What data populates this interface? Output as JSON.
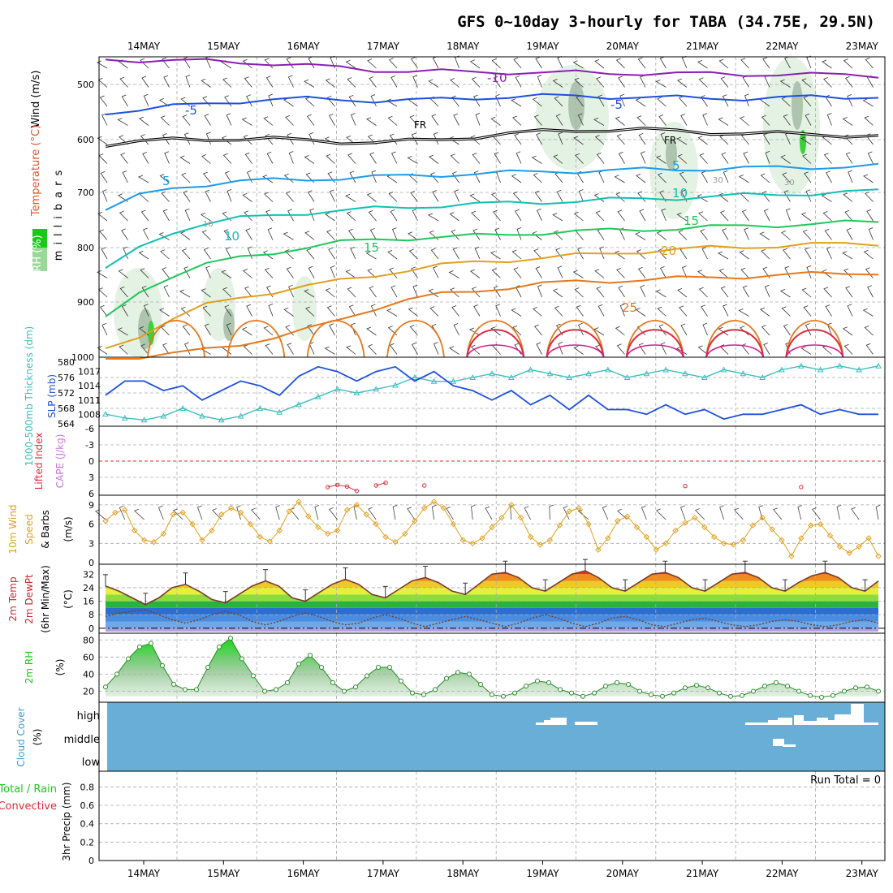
{
  "chart_data": {
    "type": "line",
    "title": "GFS 0~10day 3-hourly for TABA (34.75E, 29.5N)",
    "date_labels": [
      "14MAY",
      "15MAY",
      "16MAY",
      "17MAY",
      "18MAY",
      "19MAY",
      "20MAY",
      "21MAY",
      "22MAY",
      "23MAY"
    ],
    "colors": {
      "purple": "#8a1eb4",
      "blue": "#1e50dc",
      "sky": "#1e9be6",
      "teal": "#10c0b4",
      "green": "#1ec85a",
      "gold": "#e1a01e",
      "orange": "#e6781e",
      "red": "#dc2d3c",
      "cloud": "#69aed6",
      "cyan": "#3cbebe",
      "rh": "#19c819"
    },
    "panels": {
      "upper_air": {
        "ylabel_wind": "Wind (m/s)",
        "ylabel_temp": "Temperature (°C)",
        "ylabel_rh": "RH (%)",
        "ylabel_units": "millibars",
        "yticks": [
          "500",
          "600",
          "700",
          "800",
          "900",
          "1000"
        ],
        "ylim_mb": [
          450,
          1000
        ],
        "contour_labels": [
          "-10",
          "-5",
          "FR",
          "FR",
          "-5",
          "-5",
          "5",
          "5",
          "10",
          "10",
          "15",
          "15",
          "20",
          "25",
          "10",
          "30",
          "30"
        ],
        "isotherms": [
          {
            "name": "-10",
            "color": "purple",
            "mb": [
              455,
              456,
              457,
              458,
              460,
              462,
              466,
              470,
              474,
              476,
              477,
              478,
              478,
              479,
              479,
              480,
              480,
              481,
              481,
              482,
              482,
              483,
              483,
              484
            ]
          },
          {
            "name": "-5",
            "color": "blue",
            "mb": [
              552,
              547,
              541,
              536,
              531,
              528,
              527,
              528,
              530,
              530,
              528,
              525,
              523,
              522,
              522,
              523,
              524,
              525,
              526,
              526,
              525,
              524,
              524,
              522
            ]
          },
          {
            "name": "FR",
            "color": "black",
            "mb": [
              610,
              606,
              602,
              600,
              600,
              601,
              603,
              605,
              607,
              605,
              601,
              596,
              591,
              587,
              584,
              583,
              584,
              586,
              588,
              590,
              591,
              592,
              593,
              595
            ]
          },
          {
            "name": "5",
            "color": "sky",
            "mb": [
              730,
              705,
              690,
              683,
              678,
              676,
              674,
              672,
              670,
              668,
              666,
              664,
              662,
              660,
              659,
              658,
              657,
              656,
              655,
              654,
              653,
              652,
              651,
              650
            ]
          },
          {
            "name": "10",
            "color": "teal",
            "mb": [
              840,
              800,
              770,
              755,
              746,
              740,
              735,
              732,
              728,
              725,
              722,
              720,
              718,
              716,
              714,
              712,
              710,
              708,
              706,
              704,
              702,
              700,
              698,
              696
            ]
          },
          {
            "name": "15",
            "color": "green",
            "mb": [
              930,
              880,
              850,
              830,
              818,
              808,
              798,
              790,
              785,
              782,
              780,
              778,
              775,
              772,
              770,
              768,
              766,
              764,
              762,
              760,
              758,
              756,
              754,
              752
            ]
          },
          {
            "name": "20",
            "color": "gold",
            "mb": [
              985,
              960,
              930,
              905,
              890,
              880,
              870,
              860,
              850,
              840,
              832,
              826,
              822,
              818,
              814,
              810,
              806,
              803,
              800,
              798,
              796,
              794,
              793,
              792
            ]
          },
          {
            "name": "25",
            "color": "orange",
            "mb": [
              1000,
              1000,
              995,
              985,
              975,
              965,
              950,
              930,
              910,
              895,
              885,
              878,
              872,
              866,
              862,
              860,
              858,
              856,
              854,
              852,
              850,
              848,
              846,
              845
            ]
          }
        ]
      },
      "thickness_slp": {
        "ylabel_thick": "1000-500mb Thickness (dm)",
        "ylabel_slp": "SLP (mb)",
        "yticks_thick": [
          "564",
          "568",
          "572",
          "576",
          "580"
        ],
        "yticks_slp": [
          "1008",
          "1011",
          "1014",
          "1017"
        ],
        "ylim_thick": [
          564,
          580
        ],
        "ylim_slp": [
          1006,
          1019
        ],
        "slp_mb": [
          1012,
          1015,
          1015,
          1013,
          1014,
          1011,
          1013,
          1015,
          1014,
          1012,
          1016,
          1018,
          1017,
          1015,
          1017,
          1018,
          1015,
          1017,
          1014,
          1013,
          1011,
          1013,
          1010,
          1012,
          1009,
          1012,
          1009,
          1009,
          1008,
          1010,
          1008,
          1009,
          1007,
          1008,
          1008,
          1009,
          1010,
          1008,
          1009,
          1008,
          1008
        ],
        "thickness_dm": [
          566.5,
          565.5,
          565,
          566,
          568,
          566,
          565,
          566,
          568,
          567,
          569,
          571,
          573,
          572,
          573,
          574,
          576,
          575,
          575,
          576,
          577,
          576,
          578,
          577,
          576,
          577,
          578,
          576,
          577,
          578,
          577,
          576,
          578,
          577,
          576,
          578,
          579,
          578,
          579,
          578,
          579
        ]
      },
      "instability": {
        "ylabel_li": "Lifted Index",
        "ylabel_cape": "CAPE (J/kg)",
        "yticks": [
          "-6",
          "-3",
          "0",
          "3",
          "6"
        ],
        "ylim_li": [
          -6,
          6
        ],
        "li_values": [
          null,
          null,
          null,
          null,
          null,
          null,
          null,
          null,
          null,
          null,
          null,
          null,
          null,
          null,
          null,
          null,
          null,
          null,
          null,
          null,
          null,
          null,
          null,
          4.8,
          4.4,
          4.7,
          5.5,
          null,
          4.5,
          4,
          null,
          null,
          null,
          4.5,
          null,
          null,
          null,
          null,
          null,
          null,
          null,
          null,
          null,
          null,
          null,
          null,
          null,
          null,
          null,
          null,
          null,
          null,
          null,
          null,
          null,
          null,
          null,
          null,
          null,
          null,
          4.6,
          null,
          null,
          null,
          null,
          null,
          null,
          null,
          null,
          null,
          null,
          null,
          4.8,
          null,
          null,
          null,
          null,
          null,
          null,
          null,
          null
        ]
      },
      "wind10m": {
        "ylabel1": "10m Wind",
        "ylabel2": "Speed",
        "ylabel3": "& Barbs",
        "ylabel_units": "(m/s)",
        "yticks": [
          "0",
          "3",
          "6",
          "9"
        ],
        "ylim": [
          0,
          10
        ],
        "speed": [
          6.5,
          7.8,
          8.2,
          5,
          3.5,
          3.2,
          4.5,
          7.5,
          7.8,
          6,
          3.5,
          5,
          7.5,
          8.5,
          7.8,
          6,
          4,
          3.3,
          5,
          8,
          9.5,
          7.2,
          5.5,
          4.5,
          5,
          8.2,
          9,
          7.5,
          6,
          4,
          3.2,
          4.5,
          6.5,
          8.5,
          9.5,
          8.5,
          6,
          3.5,
          3,
          3.8,
          5.5,
          7,
          9,
          7,
          4,
          2.8,
          3.5,
          5.8,
          8,
          8.5,
          6,
          2,
          3.8,
          6.5,
          7.2,
          5.5,
          4,
          2,
          3,
          5,
          6.2,
          7,
          5.5,
          4,
          3,
          2.8,
          3.5,
          5.8,
          7,
          5.2,
          3.5,
          1,
          3.8,
          5.8,
          6,
          4.2,
          2.5,
          1.5,
          2.5,
          3.8,
          1
        ]
      },
      "temp2m": {
        "ylabel1": "2m Temp",
        "ylabel2": "2m DewPt",
        "ylabel3": "(6hr Min/Max)",
        "ylabel_units": "(°C)",
        "yticks": [
          "0",
          "8",
          "16",
          "24",
          "32"
        ],
        "ylim": [
          -2,
          36
        ],
        "temp": [
          25,
          22,
          18,
          14,
          18,
          24,
          26,
          22,
          17,
          15,
          20,
          25,
          28,
          25,
          18,
          16,
          21,
          26,
          29,
          26,
          20,
          18,
          23,
          28,
          30,
          27,
          22,
          20,
          26,
          32,
          33,
          30,
          24,
          22,
          27,
          32,
          34,
          30,
          24,
          22,
          27,
          32,
          33,
          30,
          24,
          22,
          27,
          32,
          33,
          30,
          24,
          22,
          27,
          31,
          33,
          30,
          24,
          22,
          28
        ],
        "dewpt": [
          7,
          9,
          10,
          11,
          8,
          5,
          3,
          5,
          8,
          10,
          8,
          4,
          2,
          4,
          7,
          9,
          7,
          4,
          2,
          3,
          6,
          8,
          6,
          3,
          1,
          3,
          5,
          7,
          5,
          3,
          1,
          3,
          6,
          8,
          6,
          3,
          1,
          3,
          6,
          7,
          5,
          2,
          1,
          3,
          5,
          6,
          4,
          2,
          1,
          2,
          4,
          5,
          4,
          2,
          1,
          2,
          4,
          5,
          3
        ]
      },
      "rh2m": {
        "ylabel1": "2m RH",
        "ylabel_units": "(%)",
        "yticks": [
          "20",
          "40",
          "60",
          "80"
        ],
        "ylim": [
          10,
          85
        ],
        "rh": [
          25,
          40,
          58,
          72,
          76,
          50,
          28,
          22,
          22,
          48,
          72,
          82,
          58,
          38,
          20,
          22,
          30,
          52,
          62,
          48,
          30,
          20,
          25,
          38,
          48,
          48,
          32,
          18,
          16,
          22,
          35,
          42,
          40,
          28,
          16,
          14,
          18,
          26,
          32,
          30,
          22,
          18,
          14,
          18,
          26,
          30,
          28,
          20,
          16,
          14,
          18,
          24,
          27,
          24,
          18,
          14,
          15,
          20,
          26,
          30,
          26,
          20,
          15,
          13,
          15,
          20,
          24,
          25,
          20
        ]
      },
      "cloud": {
        "ylabel1": "Cloud Cover",
        "ylabel_units": "(%)",
        "yticks": [
          "high",
          "middle",
          "low"
        ]
      },
      "precip": {
        "ylabel1": "Total / Rain",
        "ylabel2": "Convective",
        "ylabel3": "3hr Precip (mm)",
        "run_total": "Run Total = 0",
        "yticks": [
          "0",
          "0.2",
          "0.4",
          "0.6",
          "0.8"
        ],
        "ylim": [
          0,
          0.9
        ]
      }
    }
  }
}
